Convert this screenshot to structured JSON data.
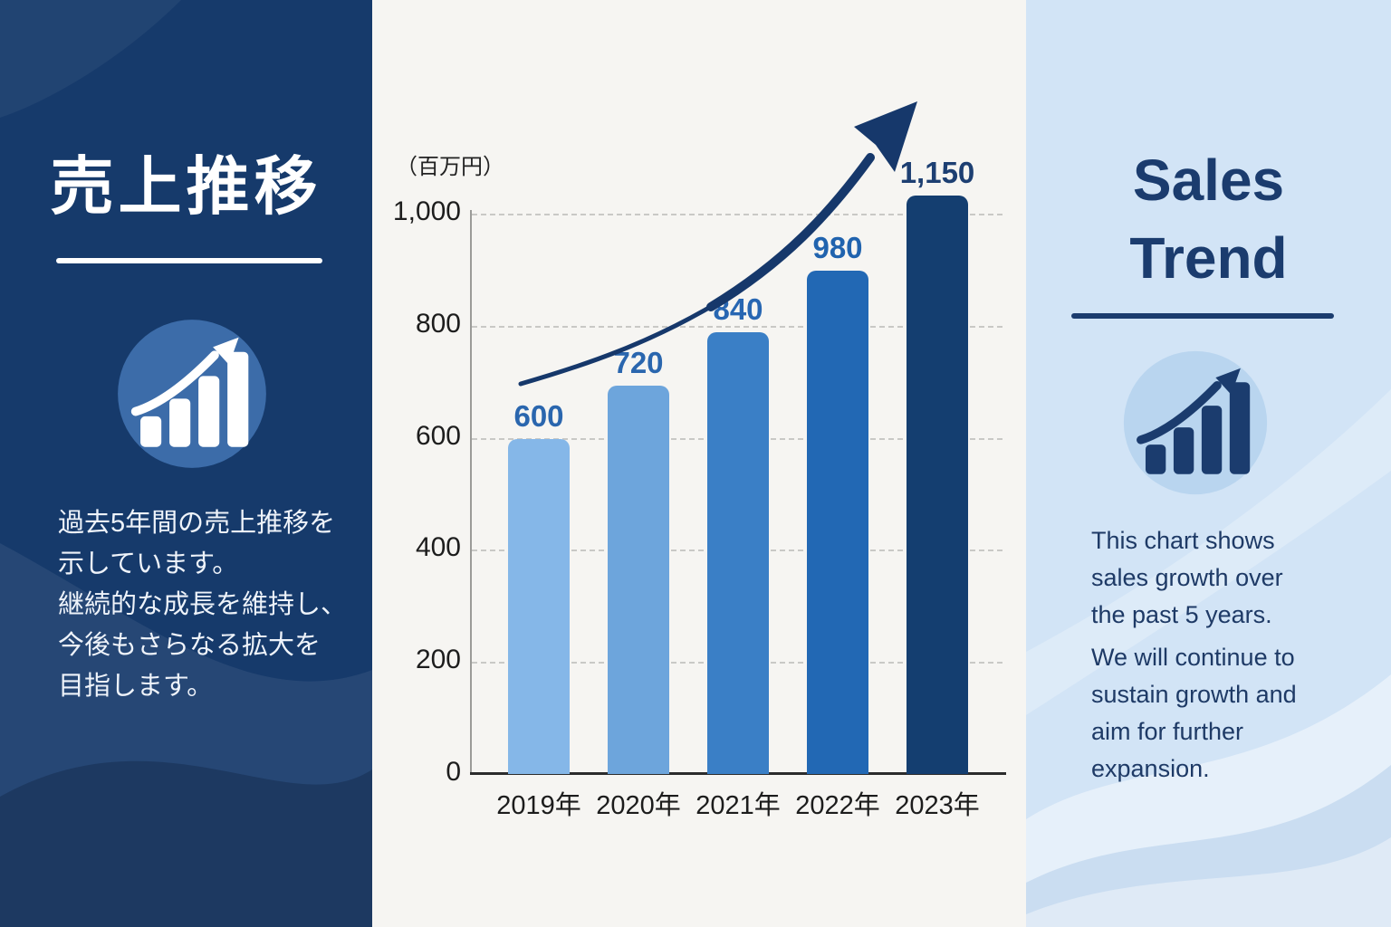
{
  "left_panel": {
    "title": "売上推移",
    "description": "過去5年間の売上推移を\n示しています。\n継続的な成長を維持し、\n今後もさらなる拡大を\n目指します。"
  },
  "right_panel": {
    "title": "Sales\nTrend",
    "paragraph1": "This chart shows\nsales growth over\nthe past 5 years.",
    "paragraph2": "We will continue to\nsustain growth and\naim for further\nexpansion."
  },
  "chart_data": {
    "type": "bar",
    "title": "売上推移 / Sales Trend",
    "unit_label": "（百万円）",
    "categories": [
      "2019年",
      "2020年",
      "2021年",
      "2022年",
      "2023年"
    ],
    "values": [
      600,
      720,
      840,
      980,
      1150
    ],
    "value_labels": [
      "600",
      "720",
      "840",
      "980",
      "1,150"
    ],
    "ylabel": "百万円",
    "ylim": [
      0,
      1000
    ],
    "yticks": [
      0,
      200,
      400,
      600,
      800,
      1000
    ],
    "ytick_labels": [
      "0",
      "200",
      "400",
      "600",
      "800",
      "1,000"
    ],
    "grid": "horizontal-dashed",
    "legend": "none",
    "annotation": "upward-curved-growth-arrow",
    "bar_colors": [
      "#85b7e8",
      "#6da5dc",
      "#3a7fc6",
      "#2268b4",
      "#143e70"
    ],
    "value_label_colors": [
      "#2a66ae",
      "#2a66ae",
      "#2766b2",
      "#2063ae",
      "#1d3f72"
    ]
  },
  "colors": {
    "left_panel_bg": "#163a6b",
    "chart_bg": "#f6f5f2",
    "right_panel_bg": "#d2e4f6",
    "accent_navy": "#1b3c6e",
    "arrow": "#16386b",
    "left_icon_circle": "#3c6ca9",
    "right_icon_circle": "#b9d5ef"
  },
  "icons": {
    "left": "growth-chart-icon",
    "right": "growth-chart-icon"
  }
}
